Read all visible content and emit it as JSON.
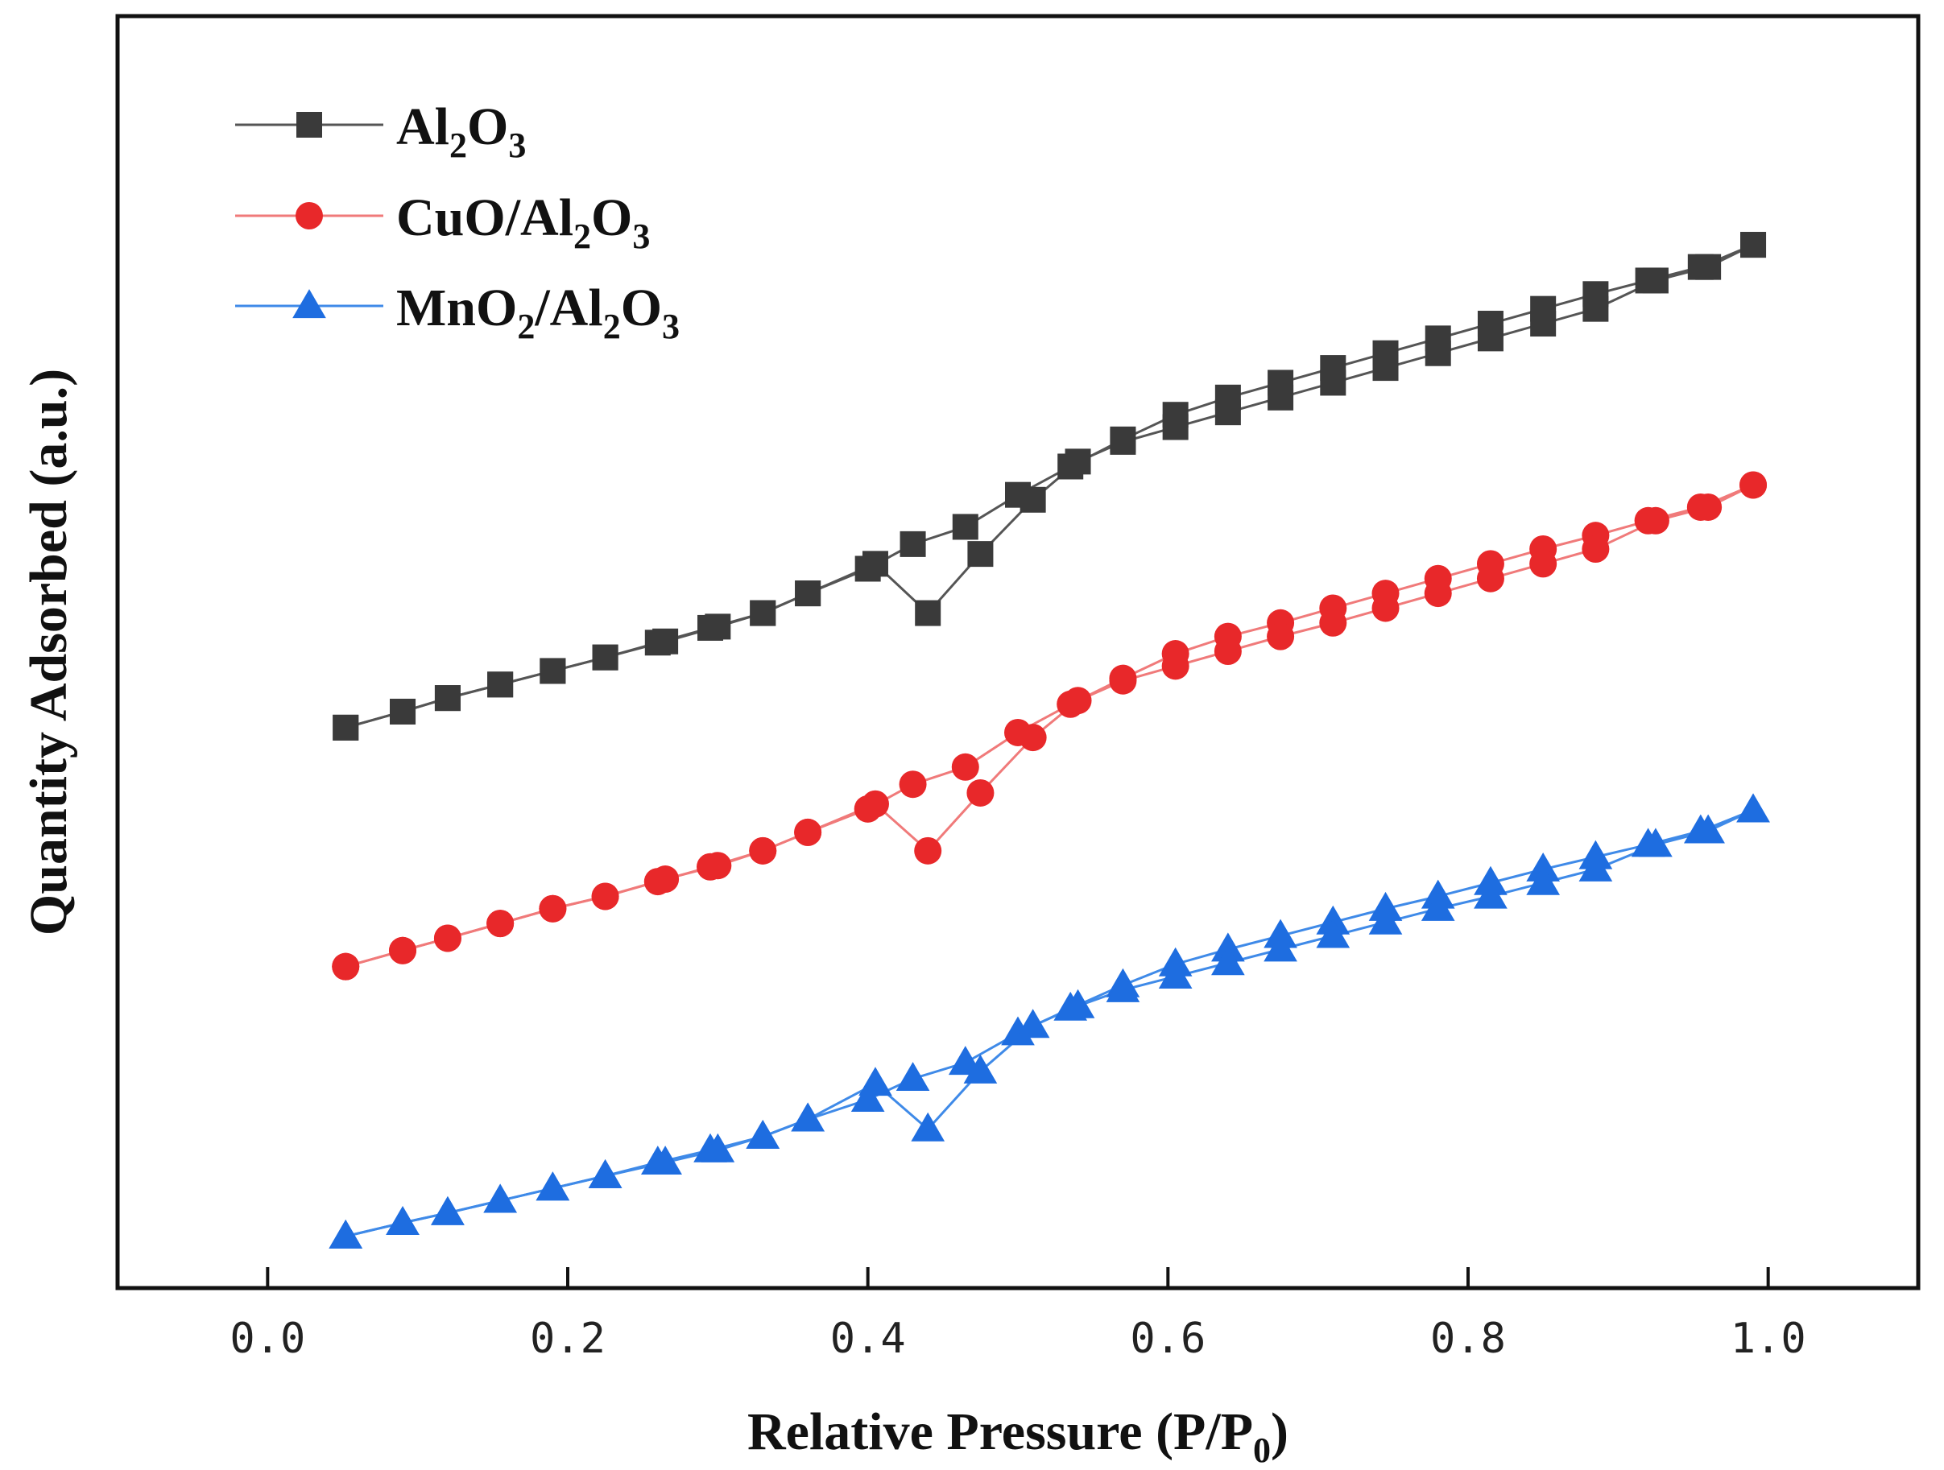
{
  "chart_data": {
    "type": "scatter",
    "title": "",
    "xlabel_main": "Relative Pressure (P/P",
    "xlabel_sub": "0",
    "xlabel_close": ")",
    "ylabel": "Quantity Adsorbed (a.u.)",
    "xlim": [
      -0.1,
      1.1
    ],
    "ylim": [
      0,
      100
    ],
    "xticks": [
      0.0,
      0.2,
      0.4,
      0.6,
      0.8,
      1.0
    ],
    "xtick_labels": [
      "0.0",
      "0.2",
      "0.4",
      "0.6",
      "0.8",
      "1.0"
    ],
    "yticks_shown": false,
    "legend_position": "top-left",
    "series": [
      {
        "name": "Al2O3",
        "label_parts": [
          [
            "Al",
            ""
          ],
          [
            "2",
            "sub"
          ],
          [
            "O",
            ""
          ],
          [
            "3",
            "sub"
          ]
        ],
        "color": "#3a3a3a",
        "line_color": "#555555",
        "marker": "square",
        "adsorption": {
          "x": [
            0.052,
            0.09,
            0.12,
            0.155,
            0.19,
            0.225,
            0.26,
            0.295,
            0.33,
            0.36,
            0.4,
            0.43,
            0.465,
            0.5,
            0.535,
            0.57,
            0.605,
            0.64,
            0.675,
            0.71,
            0.745,
            0.78,
            0.815,
            0.85,
            0.885,
            0.92,
            0.955,
            0.99
          ],
          "y": [
            45.5,
            46.8,
            47.9,
            49.0,
            50.1,
            51.2,
            52.4,
            53.6,
            54.8,
            56.4,
            58.4,
            60.4,
            61.8,
            64.4,
            66.7,
            68.9,
            70.9,
            72.3,
            73.5,
            74.7,
            75.9,
            77.1,
            78.3,
            79.5,
            80.7,
            81.8,
            82.9,
            84.7
          ]
        },
        "desorption": {
          "x": [
            0.99,
            0.96,
            0.925,
            0.885,
            0.85,
            0.815,
            0.78,
            0.745,
            0.71,
            0.675,
            0.64,
            0.605,
            0.57,
            0.54,
            0.51,
            0.475,
            0.44,
            0.405,
            0.36,
            0.33,
            0.3,
            0.265,
            0.225,
            0.19,
            0.155,
            0.12,
            0.09,
            0.052
          ],
          "y": [
            84.7,
            82.9,
            81.8,
            79.5,
            78.3,
            77.1,
            75.9,
            74.7,
            73.5,
            72.3,
            71.1,
            69.9,
            68.7,
            67.1,
            64.0,
            59.6,
            54.8,
            58.8,
            56.4,
            54.8,
            53.7,
            52.5,
            51.2,
            50.1,
            49.0,
            47.9,
            46.8,
            45.5
          ]
        }
      },
      {
        "name": "CuO/Al2O3",
        "label_parts": [
          [
            "CuO/Al",
            ""
          ],
          [
            "2",
            "sub"
          ],
          [
            "O",
            ""
          ],
          [
            "3",
            "sub"
          ]
        ],
        "color": "#e8282a",
        "line_color": "#f07a7a",
        "marker": "circle",
        "adsorption": {
          "x": [
            0.052,
            0.09,
            0.12,
            0.155,
            0.19,
            0.225,
            0.26,
            0.295,
            0.33,
            0.36,
            0.4,
            0.43,
            0.465,
            0.5,
            0.535,
            0.57,
            0.605,
            0.64,
            0.675,
            0.71,
            0.745,
            0.78,
            0.815,
            0.85,
            0.885,
            0.92,
            0.955,
            0.99
          ],
          "y": [
            26.1,
            27.4,
            28.4,
            29.6,
            30.8,
            31.8,
            33.0,
            34.2,
            35.5,
            37.0,
            38.9,
            40.9,
            42.3,
            45.1,
            47.4,
            49.5,
            51.5,
            52.9,
            54.0,
            55.2,
            56.4,
            57.6,
            58.8,
            60.0,
            61.1,
            62.3,
            63.4,
            65.2
          ]
        },
        "desorption": {
          "x": [
            0.99,
            0.96,
            0.925,
            0.885,
            0.85,
            0.815,
            0.78,
            0.745,
            0.71,
            0.675,
            0.64,
            0.605,
            0.57,
            0.54,
            0.51,
            0.475,
            0.44,
            0.405,
            0.36,
            0.33,
            0.3,
            0.265,
            0.225,
            0.19,
            0.155,
            0.12,
            0.09,
            0.052
          ],
          "y": [
            65.2,
            63.4,
            62.3,
            60.0,
            58.8,
            57.6,
            56.4,
            55.2,
            54.0,
            52.9,
            51.7,
            50.5,
            49.3,
            47.7,
            44.7,
            40.2,
            35.5,
            39.3,
            37.0,
            35.5,
            34.3,
            33.2,
            31.8,
            30.8,
            29.6,
            28.4,
            27.4,
            26.1
          ]
        }
      },
      {
        "name": "MnO2/Al2O3",
        "label_parts": [
          [
            "MnO",
            ""
          ],
          [
            "2",
            "sub"
          ],
          [
            "/Al",
            ""
          ],
          [
            "2",
            "sub"
          ],
          [
            "O",
            ""
          ],
          [
            "3",
            "sub"
          ]
        ],
        "color": "#1e6de0",
        "line_color": "#3f8ae8",
        "marker": "triangle",
        "adsorption": {
          "x": [
            0.052,
            0.09,
            0.12,
            0.155,
            0.19,
            0.225,
            0.26,
            0.295,
            0.33,
            0.36,
            0.4,
            0.43,
            0.465,
            0.5,
            0.535,
            0.57,
            0.605,
            0.64,
            0.675,
            0.71,
            0.745,
            0.78,
            0.815,
            0.85,
            0.885,
            0.92,
            0.955,
            0.99
          ],
          "y": [
            4.2,
            5.3,
            6.1,
            7.1,
            8.1,
            9.1,
            10.2,
            11.2,
            12.3,
            13.7,
            15.3,
            17.0,
            18.3,
            20.7,
            22.7,
            24.6,
            26.3,
            27.5,
            28.6,
            29.7,
            30.8,
            31.8,
            32.9,
            34.0,
            35.0,
            36.0,
            37.1,
            38.8
          ]
        },
        "desorption": {
          "x": [
            0.99,
            0.96,
            0.925,
            0.885,
            0.85,
            0.815,
            0.78,
            0.745,
            0.71,
            0.675,
            0.64,
            0.605,
            0.57,
            0.54,
            0.51,
            0.475,
            0.44,
            0.405,
            0.36,
            0.33,
            0.3,
            0.265,
            0.225,
            0.19,
            0.155,
            0.12,
            0.09,
            0.052
          ],
          "y": [
            38.8,
            37.1,
            36.0,
            34.0,
            32.9,
            31.8,
            30.8,
            29.7,
            28.6,
            27.5,
            26.4,
            25.3,
            24.2,
            22.9,
            21.3,
            17.6,
            12.9,
            16.6,
            13.7,
            12.3,
            11.2,
            10.2,
            9.1,
            8.1,
            7.1,
            6.1,
            5.3,
            4.2
          ]
        }
      }
    ]
  }
}
